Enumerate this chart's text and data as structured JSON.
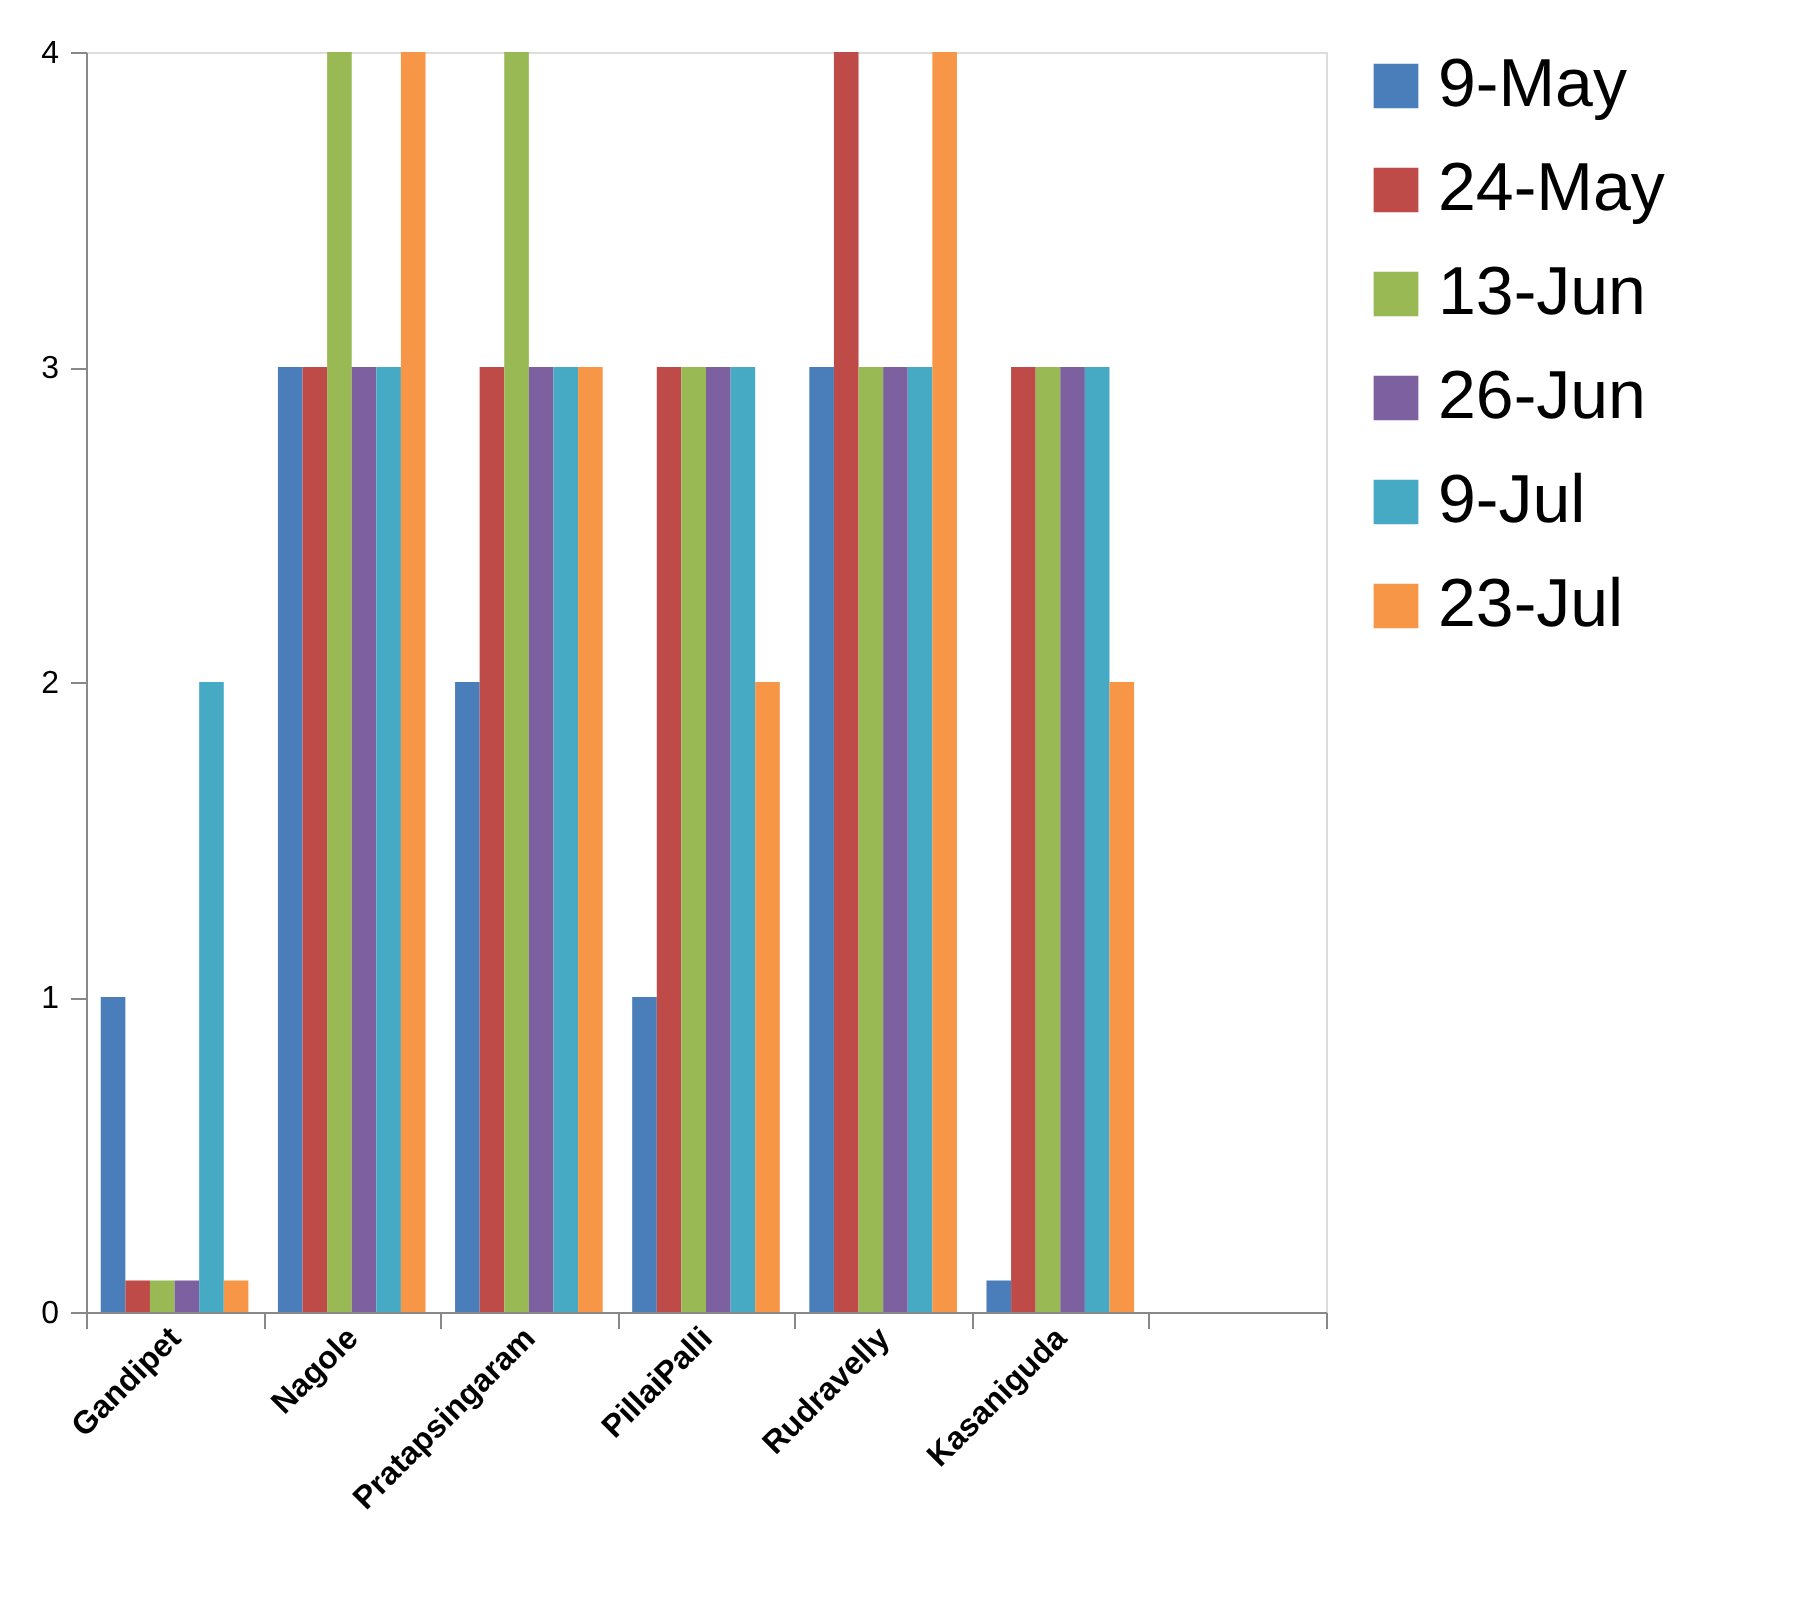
{
  "chart_data": {
    "type": "bar",
    "categories": [
      "Gandipet",
      "Nagole",
      "Pratapsingaram",
      "PillaiPalli",
      "Rudravelly",
      "Kasaniguda",
      null
    ],
    "series": [
      {
        "name": "9-May",
        "color": "#4a7ebb",
        "values": [
          1,
          3,
          2,
          1,
          3,
          0.1,
          null
        ]
      },
      {
        "name": "24-May",
        "color": "#be4b48",
        "values": [
          0.1,
          3,
          3,
          3,
          4,
          3,
          null
        ]
      },
      {
        "name": "13-Jun",
        "color": "#98b954",
        "values": [
          0.1,
          4,
          4,
          3,
          3,
          3,
          null
        ]
      },
      {
        "name": "26-Jun",
        "color": "#7d60a0",
        "values": [
          0.1,
          3,
          3,
          3,
          3,
          3,
          null
        ]
      },
      {
        "name": "9-Jul",
        "color": "#46aac5",
        "values": [
          2,
          3,
          3,
          3,
          3,
          3,
          null
        ]
      },
      {
        "name": "23-Jul",
        "color": "#f79646",
        "values": [
          0.1,
          4,
          3,
          2,
          4,
          2,
          null
        ]
      }
    ],
    "ylim": [
      0,
      4
    ],
    "yticks": [
      0,
      1,
      2,
      3,
      4
    ],
    "grid": false,
    "legend": "right"
  }
}
